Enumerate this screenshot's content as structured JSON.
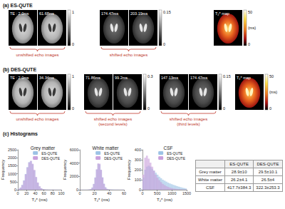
{
  "panels": [
    {
      "label": "(a) ES-QUTE",
      "groups": [
        {
          "images": [
            "TE : 2.0ms",
            "61.68ms"
          ],
          "kind": "unshifted",
          "caption": [
            "unshifted echo images"
          ],
          "colorbar": {
            "range": [
              0,
              1
            ],
            "ticks": [
              0,
              1
            ]
          }
        },
        {
          "images": [
            "174.47ms",
            "203.19ms"
          ],
          "kind": "shifted",
          "caption": [
            "shifted echo images"
          ],
          "colorbar": {
            "range": [
              0,
              0.15
            ],
            "ticks": [
              0,
              0.15
            ]
          }
        }
      ],
      "map": {
        "title": "T₂* map",
        "colorbar": {
          "range": [
            0,
            50
          ],
          "ticks": [
            0,
            50
          ],
          "unit": "(ms)"
        }
      }
    },
    {
      "label": "(b) DES-QUTE",
      "groups": [
        {
          "images": [
            "TE : 2.0ms",
            "34.34ms"
          ],
          "kind": "unshifted",
          "caption": [
            "unshifted echo images"
          ],
          "colorbar": {
            "range": [
              0,
              1
            ],
            "ticks": [
              0,
              1
            ]
          }
        },
        {
          "images": [
            "71.86ms",
            "99.2ms"
          ],
          "kind": "shifted",
          "caption": [
            "shifted echo images",
            "(second levels)"
          ],
          "colorbar": {
            "range": [
              0,
              0.3
            ],
            "ticks": [
              0,
              0.3
            ]
          }
        },
        {
          "images": [
            "147.13ms",
            "174.47ms"
          ],
          "kind": "shifted",
          "caption": [
            "shifted echo images",
            "(third levels)"
          ],
          "colorbar": {
            "range": [
              0,
              0.15
            ],
            "ticks": [
              0,
              0.15
            ]
          }
        }
      ],
      "map": {
        "title": "T₂* map",
        "colorbar": {
          "range": [
            0,
            50
          ],
          "ticks": [
            0,
            50
          ],
          "unit": "(ms)"
        }
      }
    }
  ],
  "histogram_label": "(c) Histograms",
  "chart_data": [
    {
      "type": "histogram",
      "title": "Grey matter",
      "x_label": "T₂* (ms)",
      "y_label": "Frequency",
      "bins": [
        0,
        4,
        8,
        12,
        16,
        20,
        24,
        28,
        32,
        36,
        40,
        44,
        48,
        52,
        56,
        60,
        64,
        68,
        72,
        76,
        80,
        84,
        88,
        92,
        96,
        100
      ],
      "series": [
        {
          "name": "ES-QUTE",
          "color": "#9dc3e6",
          "values": [
            47,
            128,
            296,
            584,
            983,
            1409,
            1721,
            1791,
            1588,
            1201,
            772,
            424,
            198,
            79,
            27,
            12,
            6,
            4,
            3,
            2,
            2,
            1,
            1,
            1,
            0
          ]
        },
        {
          "name": "DES-QUTE",
          "color": "#c9a0dc",
          "values": [
            40,
            115,
            275,
            560,
            955,
            1390,
            1700,
            1800,
            1620,
            1240,
            800,
            450,
            215,
            90,
            32,
            14,
            7,
            5,
            3,
            2,
            2,
            1,
            1,
            1,
            0
          ]
        }
      ],
      "xlim": [
        0,
        100
      ],
      "xticks": [
        0,
        20,
        40,
        60,
        80,
        100
      ],
      "ylim": [
        0,
        2500
      ],
      "yticks": [
        0,
        500,
        1000,
        1500,
        2000,
        2500
      ],
      "grid": false,
      "legend": "upper right"
    },
    {
      "type": "histogram",
      "title": "White matter",
      "x_label": "T₂* (ms)",
      "y_label": "Frequency",
      "bins": [
        0,
        2,
        4,
        6,
        8,
        10,
        12,
        14,
        16,
        18,
        20,
        22,
        24,
        26,
        28,
        30,
        32,
        34,
        36,
        38,
        40,
        42,
        44,
        46,
        48,
        50,
        52,
        54,
        56,
        58,
        60
      ],
      "series": [
        {
          "name": "ES-QUTE",
          "color": "#9dc3e6",
          "values": [
            0,
            0,
            0,
            3,
            2,
            4,
            20,
            91,
            318,
            865,
            1832,
            3020,
            3876,
            3800,
            2950,
            1850,
            900,
            360,
            130,
            50,
            25,
            15,
            10,
            8,
            6,
            5,
            4,
            3,
            3,
            2
          ]
        },
        {
          "name": "DES-QUTE",
          "color": "#c9a0dc",
          "values": [
            0,
            0,
            0,
            3,
            3,
            5,
            18,
            85,
            300,
            840,
            1800,
            3050,
            3950,
            3900,
            2980,
            1820,
            860,
            330,
            110,
            40,
            20,
            12,
            8,
            6,
            5,
            4,
            3,
            2,
            2,
            1
          ]
        }
      ],
      "xlim": [
        0,
        60
      ],
      "xticks": [
        0,
        20,
        40,
        60
      ],
      "ylim": [
        0,
        6000
      ],
      "yticks": [
        0,
        2000,
        4000,
        6000
      ],
      "grid": false,
      "legend": "upper right"
    },
    {
      "type": "histogram",
      "title": "CSF",
      "x_label": "T₂* (ms)",
      "y_label": "Frequency",
      "bins": [
        0,
        60,
        120,
        180,
        240,
        300,
        360,
        420,
        480,
        540,
        600,
        660,
        720,
        780,
        840,
        900,
        960,
        1020,
        1080,
        1140,
        1200,
        1260,
        1320,
        1380,
        1440,
        1500
      ],
      "series": [
        {
          "name": "ES-QUTE",
          "color": "#9dc3e6",
          "values": [
            120,
            200,
            230,
            240,
            230,
            210,
            190,
            170,
            150,
            130,
            115,
            100,
            90,
            80,
            70,
            62,
            55,
            48,
            42,
            36,
            30,
            25,
            20,
            16,
            12
          ]
        },
        {
          "name": "DES-QUTE",
          "color": "#c9a0dc",
          "values": [
            150,
            320,
            340,
            310,
            270,
            230,
            190,
            150,
            120,
            95,
            75,
            58,
            45,
            35,
            27,
            20,
            15,
            11,
            8,
            6,
            4,
            3,
            2,
            1,
            1
          ]
        }
      ],
      "xlim": [
        0,
        1500
      ],
      "xticks": [
        0,
        500,
        1000,
        1500
      ],
      "ylim": [
        0,
        400
      ],
      "yticks": [
        0,
        100,
        200,
        300,
        400
      ],
      "grid": false,
      "legend": "upper right"
    }
  ],
  "table": {
    "columns": [
      "ES-QUTE",
      "DES-QUTE"
    ],
    "rows": [
      [
        "Grey matter",
        "28.9±10",
        "29.5±10.1"
      ],
      [
        "White matter",
        "26.2±4.1",
        "26.5±4"
      ],
      [
        "CSF",
        "417.7±384.3",
        "322.3±253.3"
      ]
    ]
  }
}
